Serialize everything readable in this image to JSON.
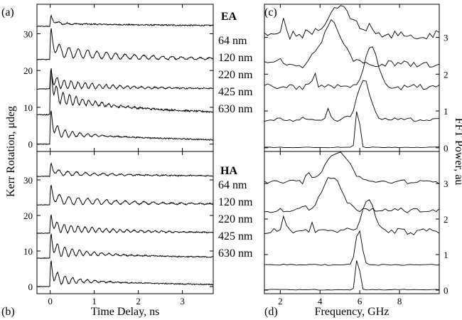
{
  "chart_data": [
    {
      "id": "a",
      "panel_label": "(a)",
      "type": "line",
      "xlabel": "",
      "ylabel": "Kerr Rotation, μdeg",
      "xlim": [
        -0.3,
        3.7
      ],
      "ylim": [
        -2,
        38
      ],
      "x_ticks": [
        0,
        1,
        2,
        3
      ],
      "y_ticks": [
        0,
        10,
        20,
        30
      ],
      "y_tick_labels": [
        "0",
        "10",
        "20",
        "30"
      ],
      "grid": false,
      "series": [
        {
          "offset": 32,
          "spike": 2.5,
          "osc": 0.4,
          "freq": 5.0,
          "damp": 0.5,
          "bg": 0.8,
          "decay": 3.0,
          "noise": 0.35
        },
        {
          "offset": 23,
          "spike": 6.5,
          "osc": 1.8,
          "freq": 4.7,
          "damp": 1.8,
          "bg": 2.5,
          "decay": 1.5,
          "noise": 0.3
        },
        {
          "offset": 15,
          "spike": 4.0,
          "osc": 1.5,
          "freq": 6.3,
          "damp": 1.2,
          "bg": 1.5,
          "decay": 1.5,
          "noise": 0.3
        },
        {
          "offset": 8,
          "spike": 9.0,
          "osc": 2.5,
          "freq": 6.8,
          "damp": 0.7,
          "bg": 5.0,
          "decay": 2.0,
          "noise": 0.45
        },
        {
          "offset": 0,
          "spike": 7.0,
          "osc": 2.0,
          "freq": 5.9,
          "damp": 0.5,
          "bg": 3.0,
          "decay": 4.0,
          "noise": 0.3
        }
      ]
    },
    {
      "id": "b",
      "panel_label": "(b)",
      "type": "line",
      "xlabel": "Time Delay, ns",
      "ylabel": "",
      "xlim": [
        -0.3,
        3.7
      ],
      "ylim": [
        -2,
        38
      ],
      "x_ticks": [
        0,
        1,
        2,
        3
      ],
      "x_tick_labels": [
        "0",
        "1",
        "2",
        "3"
      ],
      "y_ticks": [
        0,
        10,
        20,
        30
      ],
      "y_tick_labels": [
        "0",
        "10",
        "20",
        "30"
      ],
      "grid": false,
      "series": [
        {
          "offset": 31,
          "spike": 3.0,
          "osc": 0.8,
          "freq": 5.0,
          "damp": 1.2,
          "bg": 1.0,
          "decay": 2.0,
          "noise": 0.3
        },
        {
          "offset": 23,
          "spike": 4.0,
          "osc": 1.5,
          "freq": 4.7,
          "damp": 1.5,
          "bg": 1.5,
          "decay": 2.0,
          "noise": 0.3
        },
        {
          "offset": 15,
          "spike": 4.0,
          "osc": 1.5,
          "freq": 6.3,
          "damp": 1.2,
          "bg": 1.5,
          "decay": 2.0,
          "noise": 0.3
        },
        {
          "offset": 8,
          "spike": 5.0,
          "osc": 2.0,
          "freq": 6.0,
          "damp": 0.7,
          "bg": 2.0,
          "decay": 2.0,
          "noise": 0.3
        },
        {
          "offset": 0,
          "spike": 5.5,
          "osc": 2.2,
          "freq": 5.9,
          "damp": 0.5,
          "bg": 2.0,
          "decay": 3.0,
          "noise": 0.3
        }
      ]
    },
    {
      "id": "c",
      "panel_label": "(c)",
      "type": "line",
      "group_label": "EA",
      "xlabel": "",
      "ylabel": "FFT Power, au",
      "xlim": [
        1.2,
        10
      ],
      "ylim": [
        -0.1,
        3.9
      ],
      "x_ticks": [
        2,
        4,
        6,
        8
      ],
      "y_ticks": [
        0,
        1,
        2,
        3
      ],
      "y_tick_labels": [
        "0",
        "1",
        "2",
        "3"
      ],
      "y_axis_side": "right",
      "grid": false,
      "series": [
        {
          "name": "64 nm",
          "offset": 2.95,
          "base": 0.1,
          "peak": 5.0,
          "width": 0.85,
          "height": 0.75,
          "noise": 0.2,
          "extra": [
            [
              2.2,
              0.55
            ],
            [
              3.3,
              0.2
            ],
            [
              6.5,
              0.25
            ]
          ]
        },
        {
          "name": "120 nm",
          "offset": 2.15,
          "base": 0.1,
          "peak": 4.6,
          "width": 0.75,
          "height": 1.15,
          "noise": 0.2,
          "extra": [
            [
              2.0,
              0.25
            ]
          ]
        },
        {
          "name": "220 nm",
          "offset": 1.45,
          "base": 0.2,
          "peak": 6.6,
          "width": 0.45,
          "height": 1.15,
          "noise": 0.15,
          "extra": [
            [
              3.7,
              0.45
            ]
          ]
        },
        {
          "name": "425 nm",
          "offset": 0.68,
          "base": 0.1,
          "peak": 6.2,
          "width": 0.45,
          "height": 1.05,
          "noise": 0.1,
          "extra": [
            [
              4.4,
              0.3
            ]
          ]
        },
        {
          "name": "630 nm",
          "offset": 0.0,
          "base": 0.03,
          "peak": 5.9,
          "width": 0.12,
          "height": 1.25,
          "noise": 0.02,
          "extra": []
        }
      ]
    },
    {
      "id": "d",
      "panel_label": "(d)",
      "type": "line",
      "group_label": "HA",
      "xlabel": "Frequency, GHz",
      "ylabel": "",
      "xlim": [
        1.2,
        10
      ],
      "ylim": [
        -0.1,
        3.9
      ],
      "x_ticks": [
        2,
        4,
        6,
        8
      ],
      "x_tick_labels": [
        "2",
        "4",
        "6",
        "8"
      ],
      "y_ticks": [
        0,
        1,
        2,
        3
      ],
      "y_tick_labels": [
        "0",
        "1",
        "2",
        "3"
      ],
      "y_axis_side": "right",
      "grid": false,
      "series": [
        {
          "name": "64 nm",
          "offset": 2.95,
          "base": 0.1,
          "peak": 4.9,
          "width": 0.8,
          "height": 0.85,
          "noise": 0.1,
          "extra": [
            [
              3.4,
              0.3
            ]
          ]
        },
        {
          "name": "120 nm",
          "offset": 2.15,
          "base": 0.1,
          "peak": 4.6,
          "width": 0.65,
          "height": 0.95,
          "noise": 0.12,
          "extra": [
            [
              3.2,
              0.2
            ]
          ]
        },
        {
          "name": "220 nm",
          "offset": 1.45,
          "base": 0.2,
          "peak": 6.4,
          "width": 0.4,
          "height": 0.95,
          "noise": 0.15,
          "extra": [
            [
              2.2,
              0.45
            ],
            [
              3.6,
              0.3
            ]
          ]
        },
        {
          "name": "425 nm",
          "offset": 0.68,
          "base": 0.05,
          "peak": 5.95,
          "width": 0.22,
          "height": 1.0,
          "noise": 0.03,
          "extra": []
        },
        {
          "name": "630 nm",
          "offset": 0.0,
          "base": 0.03,
          "peak": 5.9,
          "width": 0.12,
          "height": 1.05,
          "noise": 0.02,
          "extra": []
        }
      ]
    }
  ]
}
